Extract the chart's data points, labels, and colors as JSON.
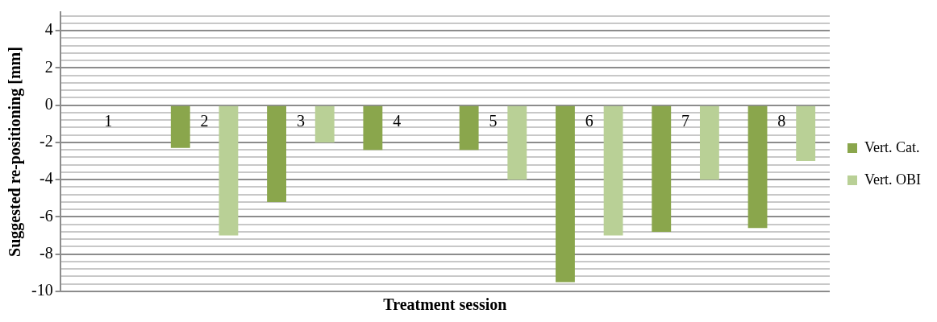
{
  "chart_data": {
    "type": "bar",
    "xlabel": "Treatment session",
    "ylabel": "Suggested re-positioning [mm]",
    "categories": [
      "1",
      "2",
      "3",
      "4",
      "5",
      "6",
      "7",
      "8"
    ],
    "series": [
      {
        "name": "Vert. Cat.",
        "color": "#8aa64c",
        "values": [
          0,
          -2.3,
          -5.2,
          -2.4,
          -2.4,
          -9.5,
          -6.8,
          -6.6
        ]
      },
      {
        "name": "Vert. OBI",
        "color": "#b9d096",
        "values": [
          0,
          -7.0,
          -2.0,
          null,
          -4.0,
          -7.0,
          -4.0,
          -3.0
        ]
      }
    ],
    "ylim": [
      -10,
      5
    ],
    "yticks": [
      -10,
      {
        "value": -9.6,
        "label": null
      },
      {
        "value": -9.2,
        "label": null
      },
      {
        "value": -8.8,
        "label": null
      },
      {
        "value": -8.4,
        "label": null
      },
      -8,
      {
        "value": -7.6,
        "label": null
      },
      {
        "value": -7.2,
        "label": null
      },
      {
        "value": -6.8,
        "label": null
      },
      {
        "value": -6.4,
        "label": null
      },
      -6,
      {
        "value": -5.6,
        "label": null
      },
      {
        "value": -5.2,
        "label": null
      },
      {
        "value": -4.8,
        "label": null
      },
      {
        "value": -4.4,
        "label": null
      },
      -4,
      {
        "value": -3.6,
        "label": null
      },
      {
        "value": -3.2,
        "label": null
      },
      {
        "value": -2.8,
        "label": null
      },
      {
        "value": -2.4,
        "label": null
      },
      -2,
      {
        "value": -1.6,
        "label": null
      },
      {
        "value": -1.2,
        "label": null
      },
      {
        "value": -0.8,
        "label": null
      },
      {
        "value": -0.4,
        "label": null
      },
      0,
      {
        "value": 0.4,
        "label": null
      },
      {
        "value": 0.8,
        "label": null
      },
      {
        "value": 1.2,
        "label": null
      },
      {
        "value": 1.6,
        "label": null
      },
      2,
      {
        "value": 2.4,
        "label": null
      },
      {
        "value": 2.8,
        "label": null
      },
      {
        "value": 3.2,
        "label": null
      },
      {
        "value": 3.6,
        "label": null
      },
      4,
      {
        "value": 4.4,
        "label": null
      },
      {
        "value": 4.8,
        "label": null
      }
    ],
    "grid": "y",
    "legend": "right"
  }
}
